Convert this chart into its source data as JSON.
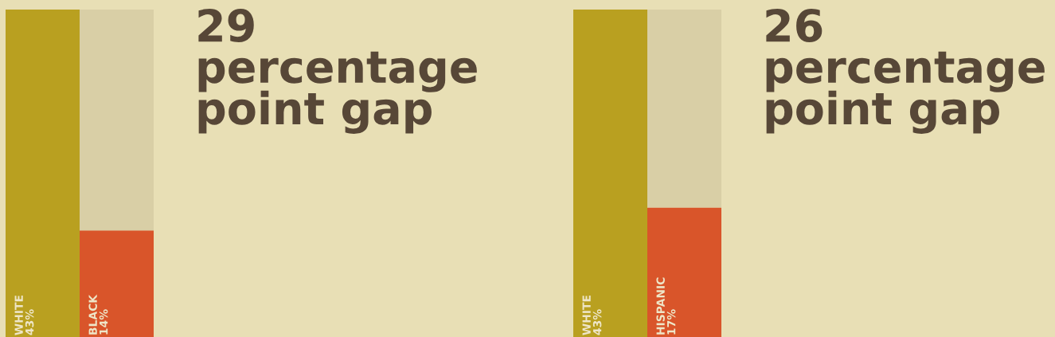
{
  "chart_data": [
    {
      "type": "bar",
      "annotations": [
        "29\npercentage\npoint gap"
      ],
      "categories": [
        "WHITE",
        "BLACK"
      ],
      "stacked": true,
      "tick_labels": false,
      "grid": false,
      "series": [
        {
          "colors": [
            "#b9a020",
            "#d9552a"
          ],
          "values": [
            43,
            14
          ],
          "value_labels": [
            "43%",
            "14%"
          ]
        },
        {
          "color": "#d9cfa6",
          "values": [
            null,
            29
          ]
        }
      ]
    },
    {
      "type": "bar",
      "annotations": [
        "26\npercentage\npoint gap"
      ],
      "categories": [
        "WHITE",
        "HISPANIC"
      ],
      "stacked": true,
      "tick_labels": false,
      "grid": false,
      "series": [
        {
          "colors": [
            "#b9a020",
            "#d9552a"
          ],
          "values": [
            43,
            17
          ],
          "value_labels": [
            "43%",
            "17%"
          ]
        },
        {
          "color": "#d9cfa6",
          "values": [
            null,
            26
          ]
        }
      ]
    }
  ]
}
